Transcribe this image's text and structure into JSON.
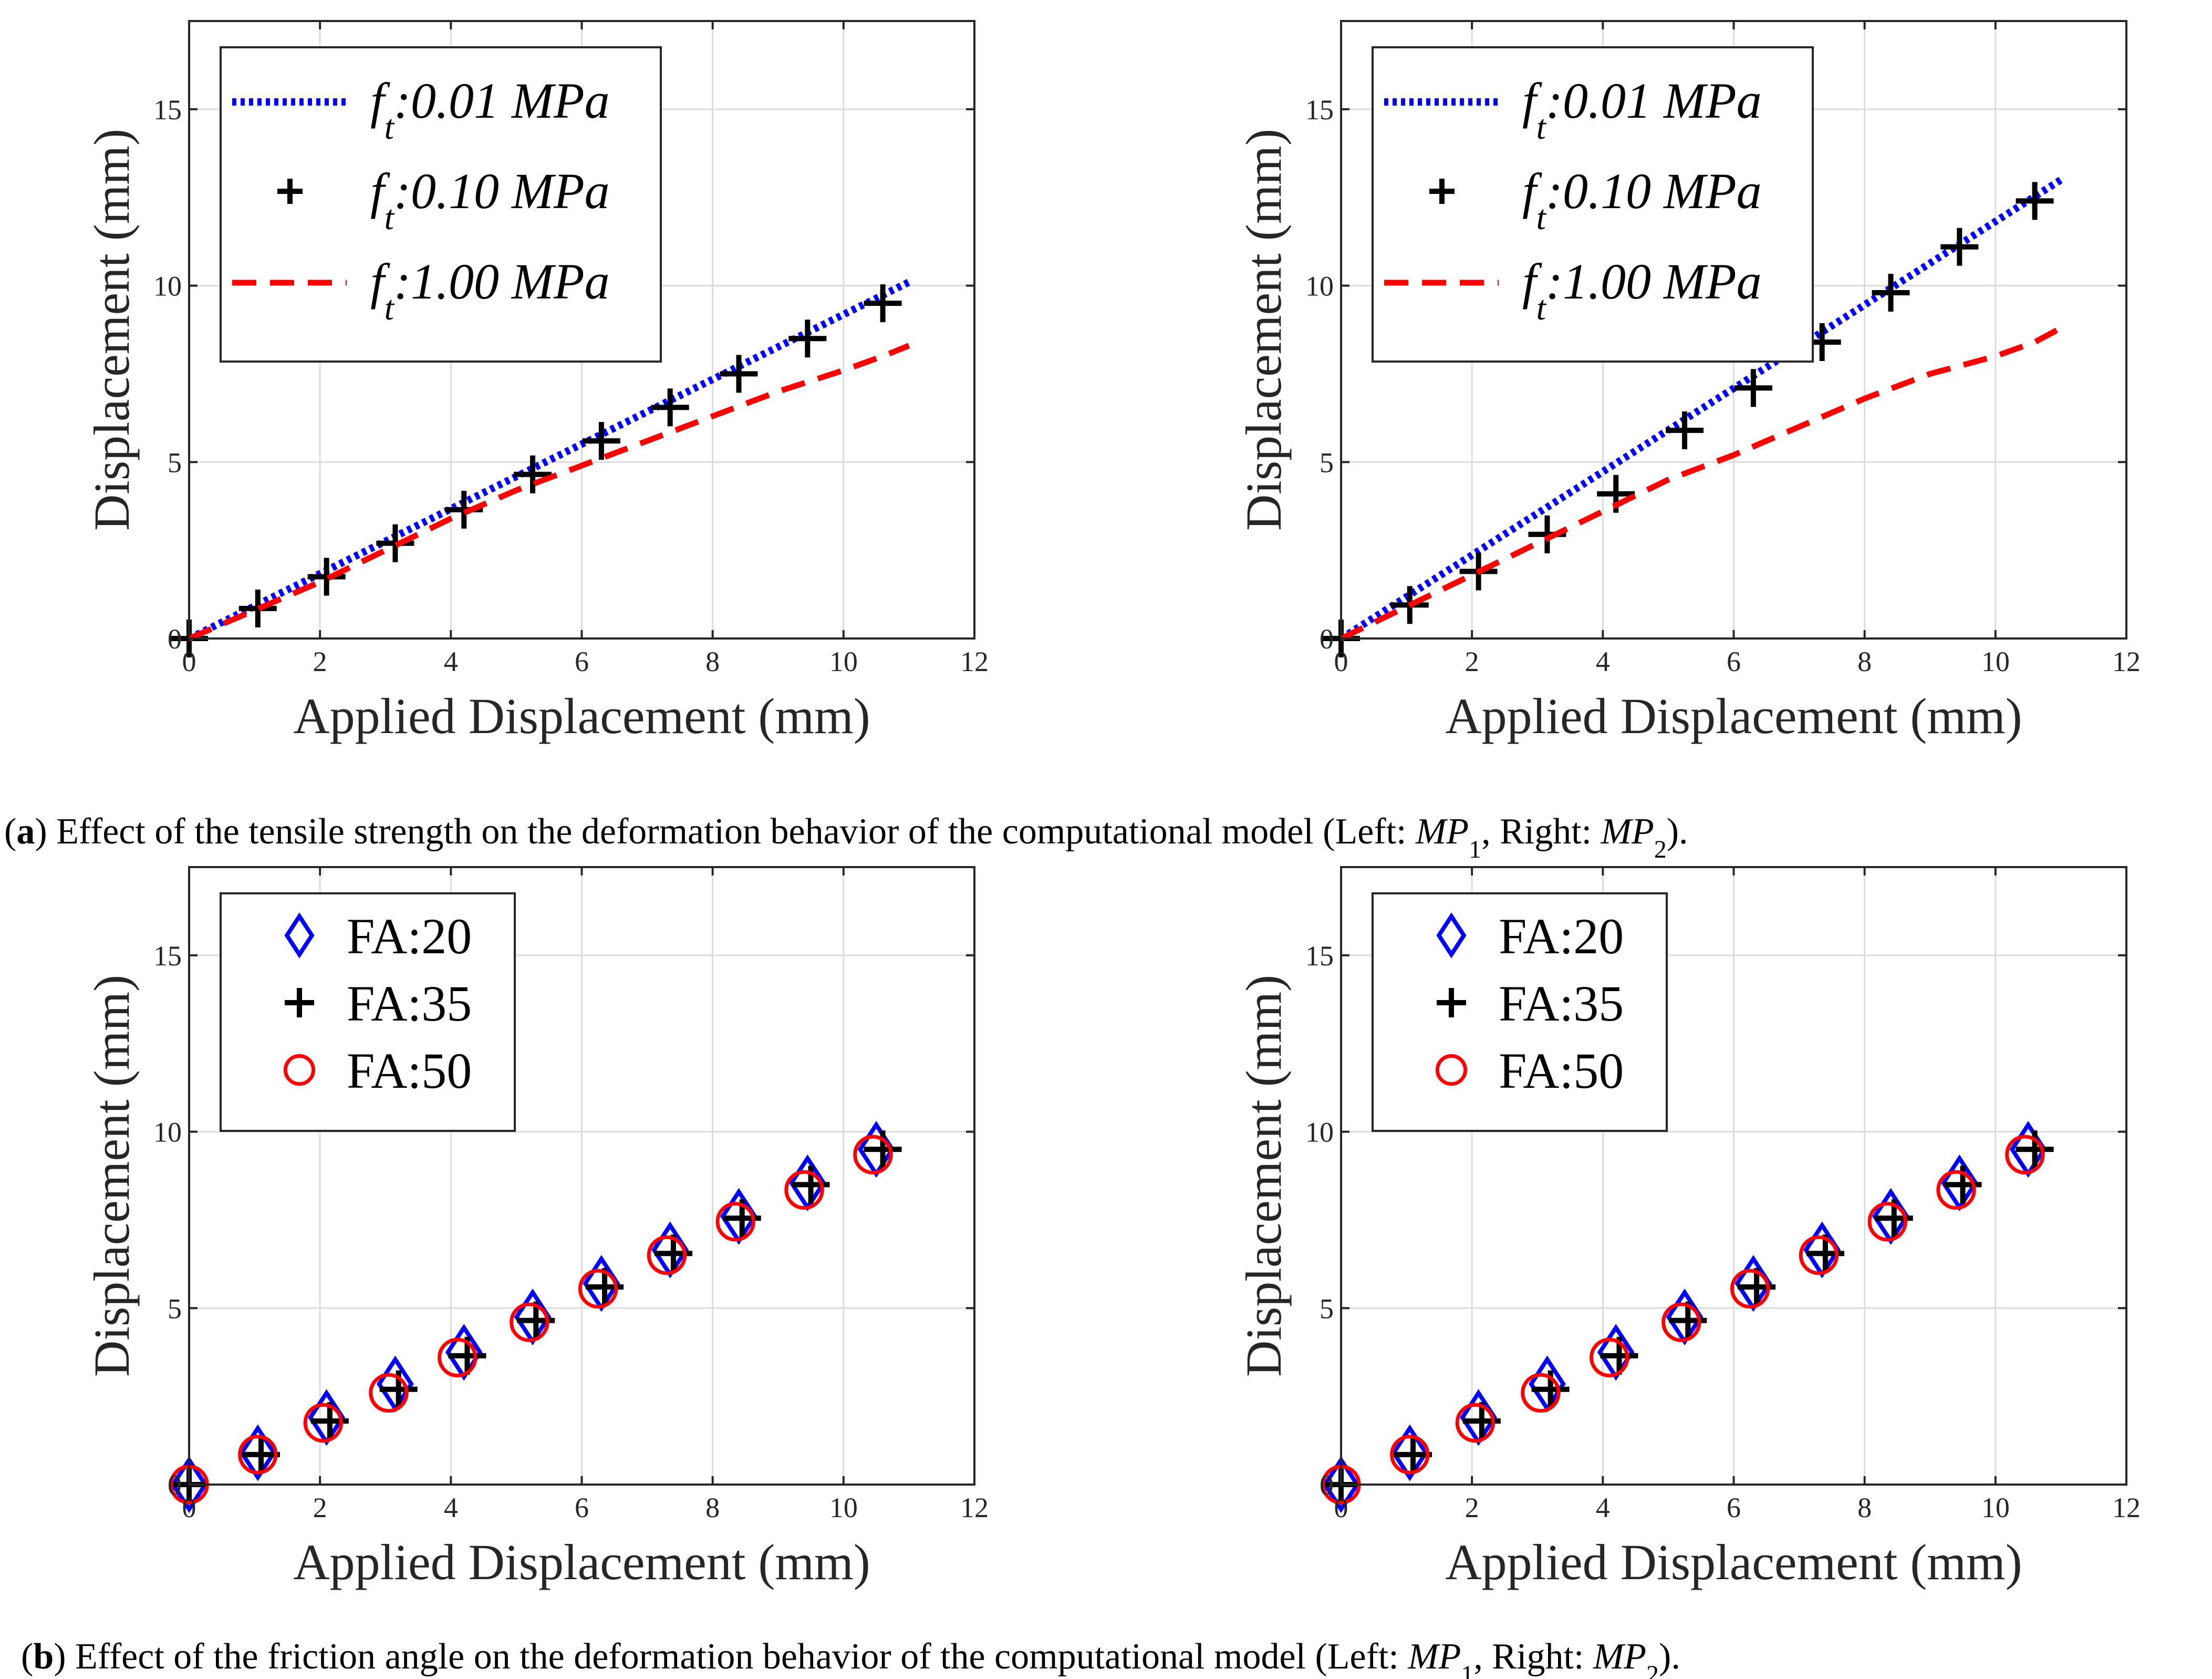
{
  "colors": {
    "blue": "#0000ff",
    "black": "#000000",
    "red": "#ff0000",
    "grid": "#dcdcdc",
    "axis": "#262626"
  },
  "chart_data": [
    {
      "id": "a-left",
      "type": "line",
      "xlabel": "Applied Displacement (mm)",
      "ylabel": "Displacement (mm)",
      "xlim": [
        0,
        12
      ],
      "ylim": [
        0,
        17.5
      ],
      "xticks": [
        "0",
        "2",
        "4",
        "6",
        "8",
        "10",
        "12"
      ],
      "yticks": [
        "0",
        "5",
        "10",
        "15"
      ],
      "grid": true,
      "legend_position": "top-left",
      "series": [
        {
          "name": "f_t:0.01 MPa",
          "label_main": "f",
          "label_sub": "t",
          "label_rest": ":0.01 MPa",
          "style": "dotted",
          "color": "blue",
          "x": [
            0,
            11
          ],
          "y": [
            0,
            10.1
          ]
        },
        {
          "name": "f_t:0.10 MPa",
          "label_main": "f",
          "label_sub": "t",
          "label_rest": ":0.10 MPa",
          "style": "plus",
          "color": "black",
          "x": [
            0,
            1.05,
            2.1,
            3.15,
            4.2,
            5.25,
            6.3,
            7.35,
            8.4,
            9.45,
            10.6
          ],
          "y": [
            0,
            0.85,
            1.75,
            2.7,
            3.65,
            4.65,
            5.6,
            6.55,
            7.5,
            8.5,
            9.5
          ]
        },
        {
          "name": "f_t:1.00 MPa",
          "label_main": "f",
          "label_sub": "t",
          "label_rest": ":1.00 MPa",
          "style": "dashed",
          "color": "red",
          "x": [
            0,
            1,
            2,
            3,
            4,
            5,
            6,
            7,
            8,
            9,
            10,
            10.6,
            11
          ],
          "y": [
            0,
            0.8,
            1.6,
            2.5,
            3.4,
            4.2,
            4.9,
            5.6,
            6.3,
            7.0,
            7.6,
            8.0,
            8.3
          ]
        }
      ]
    },
    {
      "id": "a-right",
      "type": "line",
      "xlabel": "Applied Displacement (mm)",
      "ylabel": "Displacement (mm)",
      "xlim": [
        0,
        12
      ],
      "ylim": [
        0,
        17.5
      ],
      "xticks": [
        "0",
        "2",
        "4",
        "6",
        "8",
        "10",
        "12"
      ],
      "yticks": [
        "0",
        "5",
        "10",
        "15"
      ],
      "grid": true,
      "legend_position": "top-left",
      "series": [
        {
          "name": "f_t:0.01 MPa",
          "label_main": "f",
          "label_sub": "t",
          "label_rest": ":0.01 MPa",
          "style": "dotted",
          "color": "blue",
          "x": [
            0,
            11
          ],
          "y": [
            0,
            13.0
          ]
        },
        {
          "name": "f_t:0.10 MPa",
          "label_main": "f",
          "label_sub": "t",
          "label_rest": ":0.10 MPa",
          "style": "plus",
          "color": "black",
          "x": [
            0,
            1.05,
            2.1,
            3.15,
            4.2,
            5.25,
            6.3,
            7.35,
            8.4,
            9.45,
            10.6
          ],
          "y": [
            0,
            0.95,
            1.9,
            2.95,
            4.1,
            5.9,
            7.1,
            8.4,
            9.8,
            11.1,
            12.4
          ]
        },
        {
          "name": "f_t:1.00 MPa",
          "label_main": "f",
          "label_sub": "t",
          "label_rest": ":1.00 MPa",
          "style": "dashed",
          "color": "red",
          "x": [
            0,
            1,
            2,
            3,
            4,
            5,
            6,
            7,
            8,
            9,
            10,
            10.6,
            11
          ],
          "y": [
            0,
            0.9,
            1.8,
            2.7,
            3.6,
            4.5,
            5.2,
            6.0,
            6.8,
            7.5,
            8.0,
            8.4,
            8.8
          ]
        }
      ]
    },
    {
      "id": "b-left",
      "type": "scatter",
      "xlabel": "Applied Displacement (mm)",
      "ylabel": "Displacement (mm)",
      "xlim": [
        0,
        12
      ],
      "ylim": [
        0,
        17.5
      ],
      "xticks": [
        "0",
        "2",
        "4",
        "6",
        "8",
        "10",
        "12"
      ],
      "yticks": [
        "0",
        "5",
        "10",
        "15"
      ],
      "grid": true,
      "legend_position": "top-left",
      "series": [
        {
          "name": "FA:20",
          "style": "diamond",
          "color": "blue",
          "x": [
            0,
            1.05,
            2.1,
            3.15,
            4.2,
            5.25,
            6.3,
            7.35,
            8.4,
            9.45,
            10.5
          ],
          "y": [
            0,
            0.9,
            1.9,
            2.85,
            3.75,
            4.75,
            5.7,
            6.65,
            7.6,
            8.55,
            9.5
          ]
        },
        {
          "name": "FA:35",
          "style": "plus",
          "color": "black",
          "x": [
            0,
            1.1,
            2.15,
            3.2,
            4.25,
            5.3,
            6.35,
            7.4,
            8.45,
            9.5,
            10.6
          ],
          "y": [
            0,
            0.85,
            1.8,
            2.7,
            3.65,
            4.65,
            5.6,
            6.55,
            7.55,
            8.5,
            9.5
          ]
        },
        {
          "name": "FA:50",
          "style": "circle",
          "color": "red",
          "x": [
            0,
            1.05,
            2.05,
            3.05,
            4.1,
            5.2,
            6.25,
            7.3,
            8.35,
            9.4,
            10.45
          ],
          "y": [
            0,
            0.85,
            1.75,
            2.6,
            3.6,
            4.6,
            5.55,
            6.5,
            7.45,
            8.35,
            9.35
          ]
        }
      ]
    },
    {
      "id": "b-right",
      "type": "scatter",
      "xlabel": "Applied Displacement (mm)",
      "ylabel": "Displacement (mm)",
      "xlim": [
        0,
        12
      ],
      "ylim": [
        0,
        17.5
      ],
      "xticks": [
        "0",
        "2",
        "4",
        "6",
        "8",
        "10",
        "12"
      ],
      "yticks": [
        "0",
        "5",
        "10",
        "15"
      ],
      "grid": true,
      "legend_position": "top-left",
      "series": [
        {
          "name": "FA:20",
          "style": "diamond",
          "color": "blue",
          "x": [
            0,
            1.05,
            2.1,
            3.15,
            4.2,
            5.25,
            6.3,
            7.35,
            8.4,
            9.45,
            10.5
          ],
          "y": [
            0,
            0.9,
            1.9,
            2.85,
            3.75,
            4.75,
            5.7,
            6.65,
            7.6,
            8.55,
            9.5
          ]
        },
        {
          "name": "FA:35",
          "style": "plus",
          "color": "black",
          "x": [
            0,
            1.1,
            2.15,
            3.2,
            4.25,
            5.3,
            6.35,
            7.4,
            8.45,
            9.5,
            10.6
          ],
          "y": [
            0,
            0.85,
            1.8,
            2.7,
            3.65,
            4.65,
            5.6,
            6.55,
            7.55,
            8.5,
            9.5
          ]
        },
        {
          "name": "FA:50",
          "style": "circle",
          "color": "red",
          "x": [
            0,
            1.05,
            2.05,
            3.05,
            4.1,
            5.2,
            6.25,
            7.3,
            8.35,
            9.4,
            10.45
          ],
          "y": [
            0,
            0.85,
            1.75,
            2.6,
            3.6,
            4.6,
            5.55,
            6.5,
            7.45,
            8.35,
            9.35
          ]
        }
      ]
    }
  ],
  "captions": {
    "a": {
      "open": "(",
      "letter": "a",
      "text": ") Effect of the tensile strength on the deformation behavior of the computational model (Left:  ",
      "mp": "MP",
      "sub1": "1",
      "mid": ", Right:  ",
      "sub2": "2",
      "end": ")."
    },
    "b": {
      "open": "(",
      "letter": "b",
      "text": ") Effect of the friction angle on the deformation behavior of the computational model (Left:  ",
      "mp": "MP",
      "sub1": "1",
      "mid": ", Right:  ",
      "sub2": "2",
      "end": ")."
    }
  }
}
